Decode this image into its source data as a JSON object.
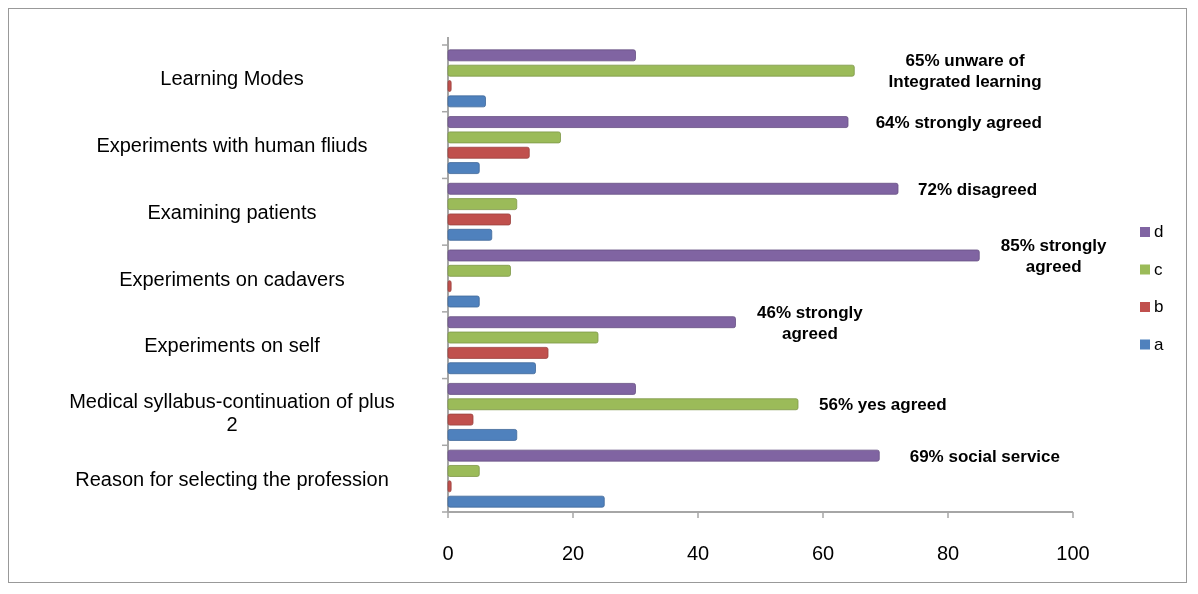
{
  "chart_data": {
    "type": "bar",
    "orientation": "horizontal",
    "categories": [
      "Learning Modes",
      "Experiments with human fliuds",
      "Examining patients",
      "Experiments on cadavers",
      "Experiments on self",
      "Medical syllabus-continuation of plus 2",
      "Reason for selecting the profession"
    ],
    "series": [
      {
        "name": "a",
        "color": "#4f81bd",
        "values": [
          6,
          5,
          7,
          5,
          14,
          11,
          25
        ]
      },
      {
        "name": "b",
        "color": "#c0504d",
        "values": [
          0.5,
          13,
          10,
          0.5,
          16,
          4,
          0.5
        ]
      },
      {
        "name": "c",
        "color": "#9bbb59",
        "values": [
          65,
          18,
          11,
          10,
          24,
          56,
          5
        ]
      },
      {
        "name": "d",
        "color": "#8064a2",
        "values": [
          30,
          64,
          72,
          85,
          46,
          30,
          69
        ]
      }
    ],
    "xlim": [
      0,
      100
    ],
    "xticks": [
      0,
      20,
      40,
      60,
      80,
      100
    ],
    "grid": false,
    "legend": "right",
    "annotations": [
      "65% unware of\nIntegrated learning",
      "64% strongly agreed",
      "72% disagreed",
      "85% strongly\nagreed",
      "46% strongly\nagreed",
      "56% yes agreed",
      "69% social service"
    ]
  }
}
